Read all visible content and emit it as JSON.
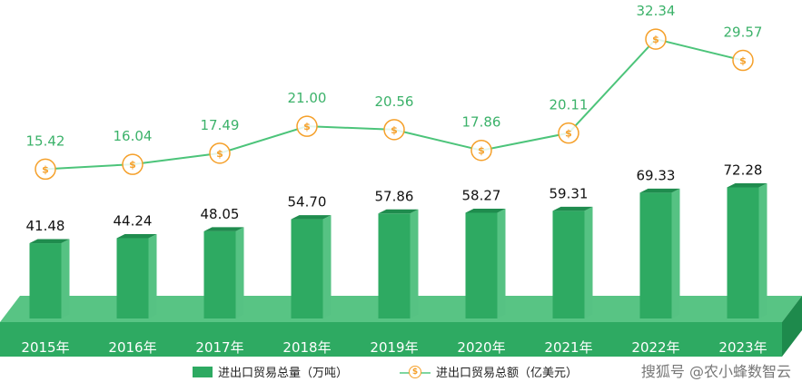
{
  "chart_data": {
    "type": "bar+line",
    "categories": [
      "2015年",
      "2016年",
      "2017年",
      "2018年",
      "2019年",
      "2020年",
      "2021年",
      "2022年",
      "2023年"
    ],
    "series": [
      {
        "name": "进出口贸易总量（万吨）",
        "type": "bar",
        "values": [
          41.48,
          44.24,
          48.05,
          54.7,
          57.86,
          58.27,
          59.31,
          69.33,
          72.28
        ],
        "labels": [
          "41.48",
          "44.24",
          "48.05",
          "54.70",
          "57.86",
          "58.27",
          "59.31",
          "69.33",
          "72.28"
        ],
        "color": "#2eaa62"
      },
      {
        "name": "进出口贸易总额（亿美元）",
        "type": "line",
        "values": [
          15.42,
          16.04,
          17.49,
          21.0,
          20.56,
          17.86,
          20.11,
          32.34,
          29.57
        ],
        "labels": [
          "15.42",
          "16.04",
          "17.49",
          "21.00",
          "20.56",
          "17.86",
          "20.11",
          "32.34",
          "29.57"
        ],
        "color": "#4cc47a",
        "marker": "dollar-coin-icon",
        "marker_color": "#f5a02a"
      }
    ]
  },
  "legend": {
    "bar_label": "进出口贸易总量（万吨）",
    "line_label": "进出口贸易总额（亿美元）"
  },
  "watermark": "搜狐号 @农小蜂数智云"
}
